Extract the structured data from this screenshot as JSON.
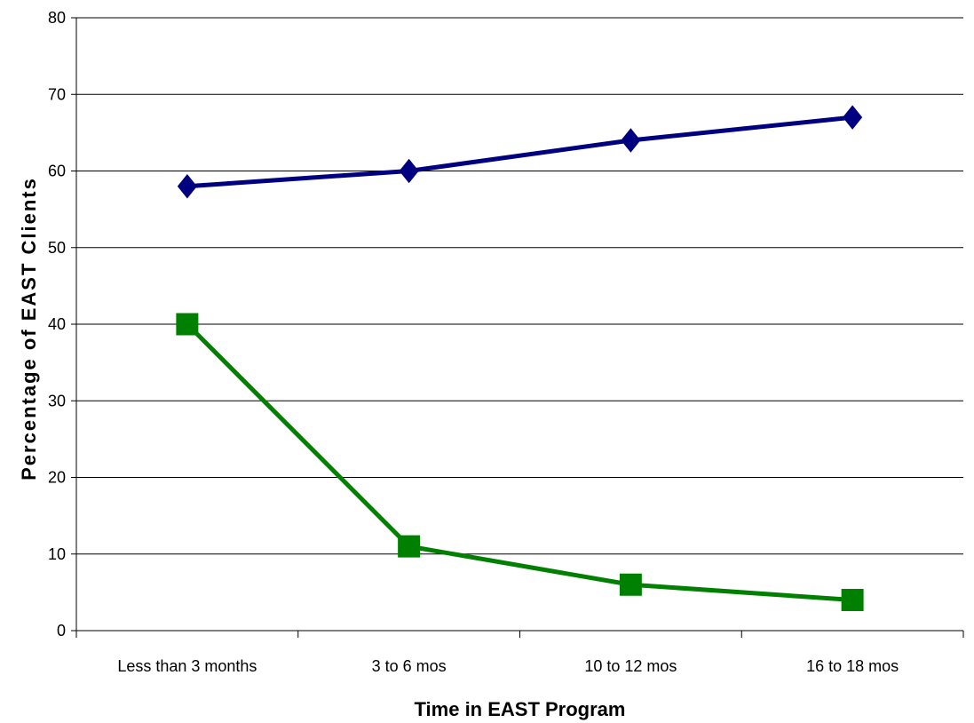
{
  "chart_data": {
    "type": "line",
    "title": "",
    "xlabel": "Time in EAST Program",
    "ylabel": "Percentage of EAST Clients",
    "categories": [
      "Less than 3 months",
      "3 to 6 mos",
      "10 to 12 mos",
      "16 to 18 mos"
    ],
    "ylim": [
      0,
      80
    ],
    "yticks": [
      0,
      10,
      20,
      30,
      40,
      50,
      60,
      70,
      80
    ],
    "grid": true,
    "legend": "none",
    "series": [
      {
        "marker": "diamond",
        "color": "#000080",
        "values": [
          58,
          60,
          64,
          67
        ]
      },
      {
        "marker": "square",
        "color": "#008000",
        "values": [
          40,
          11,
          6,
          4
        ]
      }
    ]
  }
}
